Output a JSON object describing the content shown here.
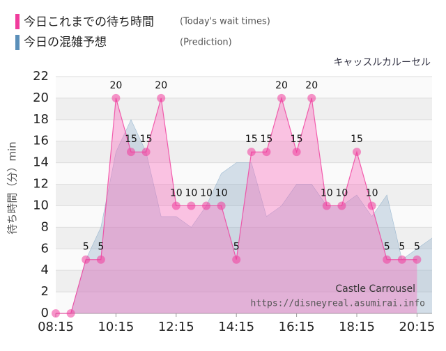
{
  "chart_data": {
    "type": "area-line",
    "subtitle": "キャッスルカルーセル",
    "y_label": "待ち時間（分）min",
    "watermark": [
      "Castle Carrousel",
      "https://disneyreal.asumirai.info"
    ],
    "xlim": [
      495,
      1245
    ],
    "xticks": [
      {
        "value": 495,
        "label": "08:15"
      },
      {
        "value": 615,
        "label": "10:15"
      },
      {
        "value": 735,
        "label": "12:15"
      },
      {
        "value": 855,
        "label": "14:15"
      },
      {
        "value": 975,
        "label": "16:15"
      },
      {
        "value": 1095,
        "label": "18:15"
      },
      {
        "value": 1215,
        "label": "20:15"
      }
    ],
    "ylim": [
      0,
      22
    ],
    "yticks": [
      0,
      2,
      4,
      6,
      8,
      10,
      12,
      14,
      16,
      18,
      20,
      22
    ],
    "grid": true,
    "series": [
      {
        "name": "今日の混雑予想",
        "note": "(Prediction)",
        "color": "#5b8fb9",
        "fill": "rgba(130,165,195,0.32)",
        "x": [
          495,
          525,
          555,
          585,
          615,
          645,
          675,
          705,
          735,
          765,
          795,
          825,
          855,
          885,
          915,
          945,
          975,
          1005,
          1035,
          1065,
          1095,
          1125,
          1155,
          1185,
          1215,
          1245
        ],
        "values": [
          0,
          0,
          5,
          8,
          15,
          18,
          15,
          9,
          9,
          8,
          10,
          13,
          14,
          14,
          9,
          10,
          12,
          12,
          10,
          10,
          11,
          9,
          11,
          5,
          6,
          7
        ]
      },
      {
        "name": "今日これまでの待ち時間",
        "note": "(Today's wait times)",
        "color": "#f03c9c",
        "fill": "rgba(250,110,190,0.40)",
        "x": [
          495,
          525,
          555,
          585,
          615,
          645,
          675,
          705,
          735,
          765,
          795,
          825,
          855,
          885,
          915,
          945,
          975,
          1005,
          1035,
          1065,
          1095,
          1125,
          1155,
          1185,
          1215
        ],
        "values": [
          0,
          0,
          5,
          5,
          20,
          15,
          15,
          20,
          10,
          10,
          10,
          10,
          5,
          15,
          15,
          20,
          15,
          20,
          10,
          10,
          15,
          10,
          5,
          5,
          5
        ]
      }
    ]
  }
}
